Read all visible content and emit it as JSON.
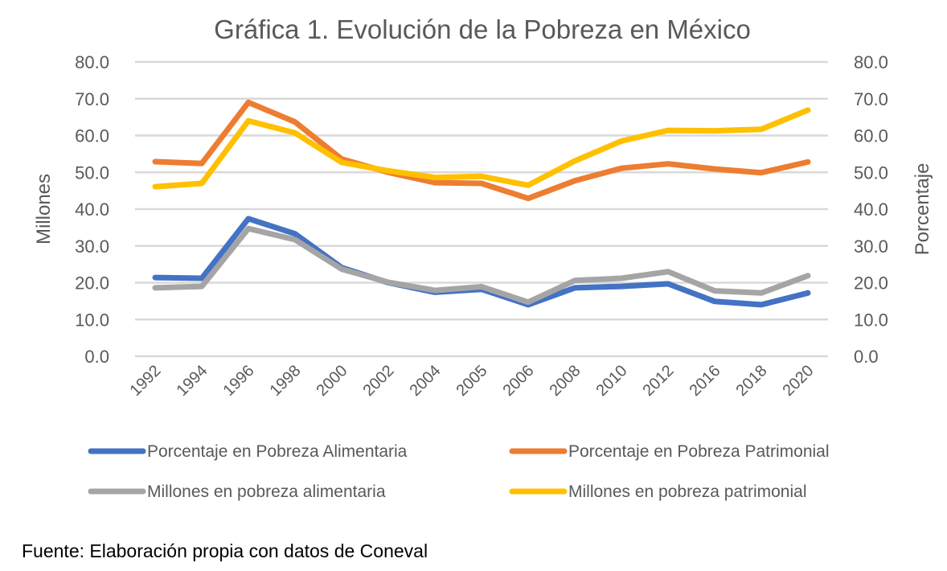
{
  "chart_data": {
    "type": "line",
    "title": "Gráfica 1. Evolución de la Pobreza en México",
    "xlabel": "",
    "ylabel_left": "Millones",
    "ylabel_right": "Porcentaje",
    "ylim_left": [
      0,
      80
    ],
    "ylim_right": [
      0,
      80
    ],
    "y_ticks": [
      "0.0",
      "10.0",
      "20.0",
      "30.0",
      "40.0",
      "50.0",
      "60.0",
      "70.0",
      "80.0"
    ],
    "y_tick_values": [
      0,
      10,
      20,
      30,
      40,
      50,
      60,
      70,
      80
    ],
    "grid": true,
    "legend_position": "bottom",
    "categories": [
      "1992",
      "1994",
      "1996",
      "1998",
      "2000",
      "2002",
      "2004",
      "2005",
      "2006",
      "2008",
      "2010",
      "2012",
      "2016",
      "2018",
      "2020"
    ],
    "series": [
      {
        "name": "Porcentaje en Pobreza Alimentaria",
        "axis": "right",
        "color": "#4472c4",
        "values": [
          21.4,
          21.2,
          37.4,
          33.3,
          24.1,
          20.0,
          17.4,
          18.2,
          14.0,
          18.6,
          19.0,
          19.7,
          14.9,
          14.0,
          17.2
        ]
      },
      {
        "name": "Porcentaje en Pobreza Patrimonial",
        "axis": "right",
        "color": "#ed7d31",
        "values": [
          52.9,
          52.4,
          69.0,
          63.7,
          53.6,
          50.0,
          47.2,
          47.0,
          42.9,
          47.7,
          51.1,
          52.3,
          50.9,
          49.9,
          52.8
        ]
      },
      {
        "name": "Millones en pobreza alimentaria",
        "axis": "left",
        "color": "#a5a5a5",
        "values": [
          18.6,
          19.0,
          34.7,
          31.7,
          23.7,
          20.1,
          17.9,
          18.9,
          14.7,
          20.6,
          21.2,
          23.0,
          17.8,
          17.2,
          21.9
        ]
      },
      {
        "name": "Millones en pobreza patrimonial",
        "axis": "left",
        "color": "#ffc000",
        "values": [
          46.1,
          47.0,
          64.0,
          60.7,
          52.7,
          50.4,
          48.6,
          48.9,
          46.5,
          53.1,
          58.5,
          61.4,
          61.3,
          61.7,
          66.9
        ]
      }
    ]
  },
  "legend": {
    "items": [
      {
        "label": "Porcentaje en Pobreza Alimentaria",
        "color": "#4472c4"
      },
      {
        "label": "Porcentaje en Pobreza Patrimonial",
        "color": "#ed7d31"
      },
      {
        "label": "Millones en pobreza alimentaria",
        "color": "#a5a5a5"
      },
      {
        "label": "Millones en pobreza patrimonial",
        "color": "#ffc000"
      }
    ]
  },
  "source_note": "Fuente: Elaboración propia con datos de Coneval"
}
